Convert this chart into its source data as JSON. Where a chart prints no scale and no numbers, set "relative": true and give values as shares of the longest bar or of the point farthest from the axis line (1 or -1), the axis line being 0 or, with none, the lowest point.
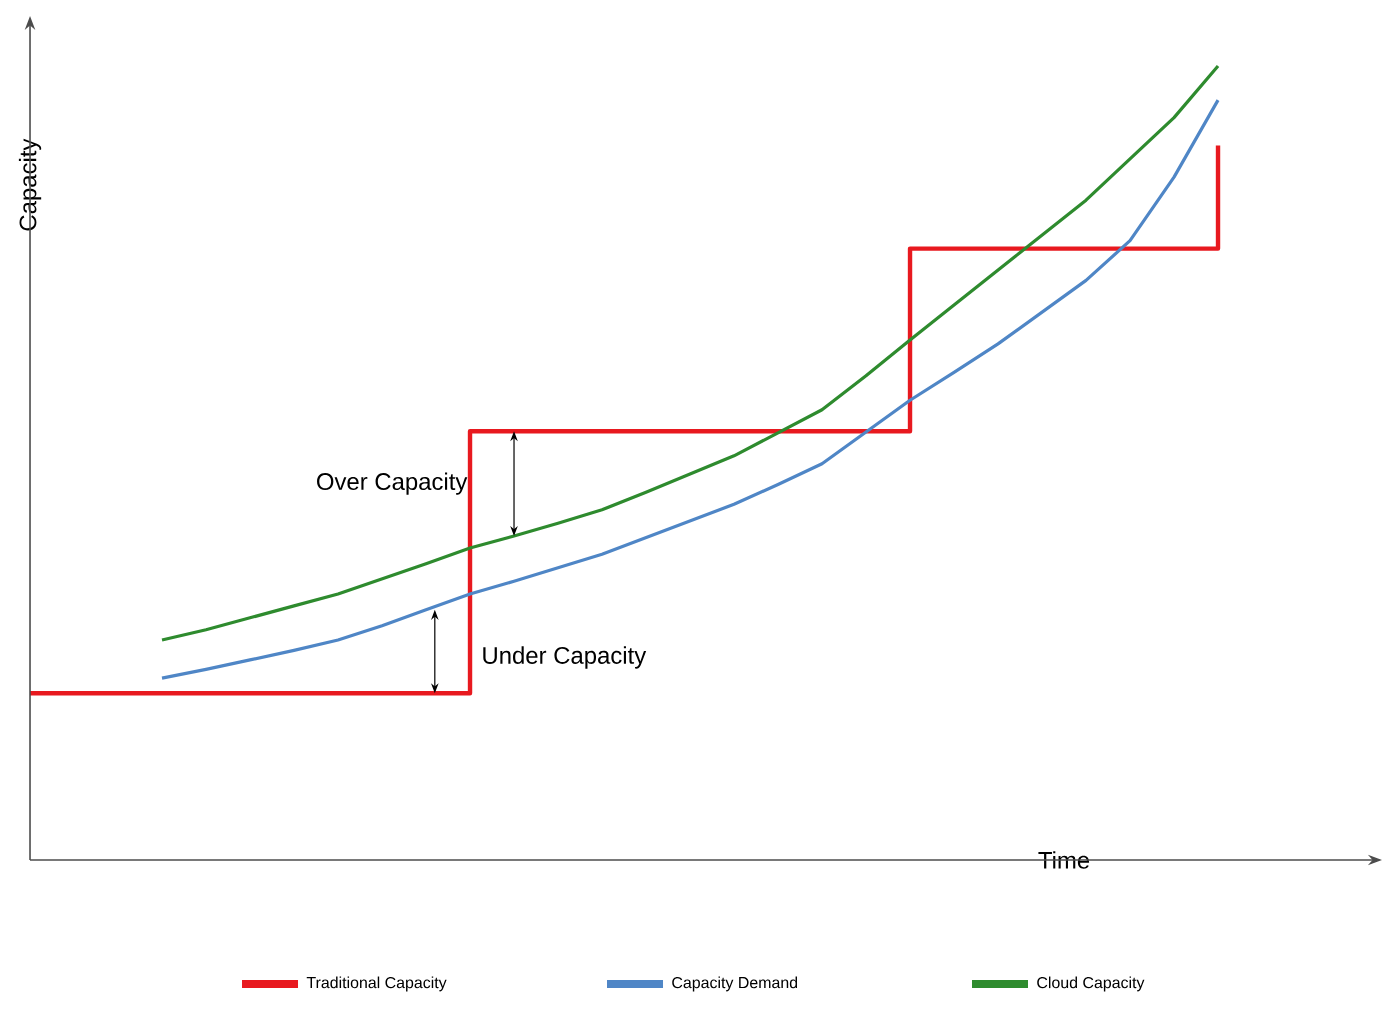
{
  "chart_data": {
    "type": "line",
    "relative": true,
    "xlabel": "Time",
    "ylabel": "Capacity",
    "categories": [
      null,
      null,
      null,
      null,
      null,
      null,
      null,
      null,
      null,
      null,
      null,
      null,
      null,
      null,
      null,
      null,
      null,
      null,
      null,
      null,
      null,
      null,
      null,
      null,
      null,
      null,
      null,
      null
    ],
    "series": [
      {
        "name": "Traditional Capacity",
        "type": "step",
        "color": "#e8191f",
        "values": [
          0.21,
          0.21,
          0.21,
          0.21,
          0.21,
          0.21,
          0.21,
          0.21,
          0.21,
          0.21,
          0.54,
          0.54,
          0.54,
          0.54,
          0.54,
          0.54,
          0.54,
          0.54,
          0.54,
          0.54,
          0.77,
          0.77,
          0.77,
          0.77,
          0.77,
          0.77,
          0.77,
          0.9
        ]
      },
      {
        "name": "Capacity Demand",
        "color": "#4f86c6",
        "values": [
          null,
          null,
          null,
          0.229,
          0.24,
          0.252,
          0.264,
          0.277,
          0.295,
          0.315,
          0.335,
          0.351,
          0.368,
          0.385,
          0.406,
          0.427,
          0.448,
          0.473,
          0.499,
          0.539,
          0.579,
          0.614,
          0.65,
          0.69,
          0.73,
          0.78,
          0.86,
          0.957
        ]
      },
      {
        "name": "Cloud Capacity",
        "color": "#2e8b2e",
        "values": [
          null,
          null,
          null,
          0.277,
          0.29,
          0.305,
          0.32,
          0.335,
          0.354,
          0.373,
          0.393,
          0.408,
          0.424,
          0.441,
          0.463,
          0.486,
          0.509,
          0.538,
          0.567,
          0.61,
          0.655,
          0.699,
          0.743,
          0.787,
          0.831,
          0.883,
          0.935,
          1.0
        ]
      }
    ],
    "annotations": [
      "Over Capacity",
      "Under Capacity"
    ],
    "legend": "bottom"
  }
}
